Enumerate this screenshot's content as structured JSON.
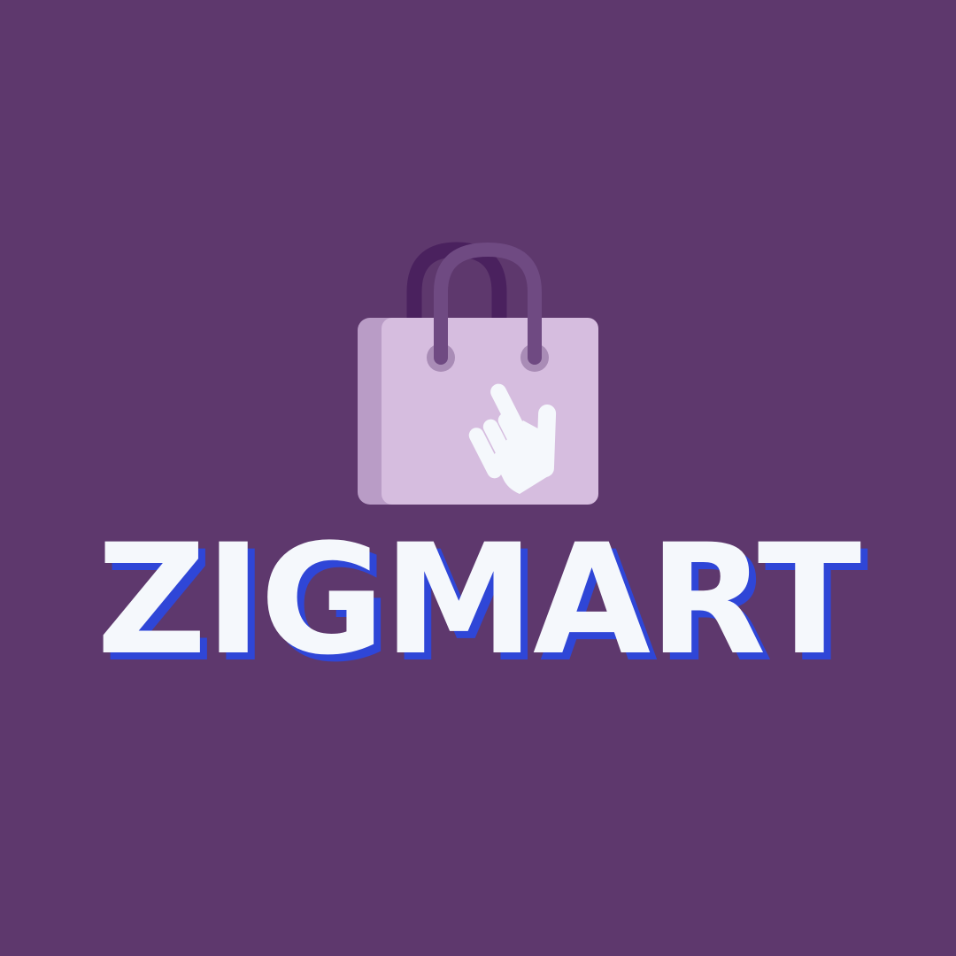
{
  "logo": {
    "brand_name": "ZIGMART",
    "icon": "shopping-bag-pointer-icon",
    "colors": {
      "background": "#5e386d",
      "bag_front": "#d6bddf",
      "bag_side": "#b99cc6",
      "handle_back": "#4a215e",
      "handle_front": "#6f4a82",
      "hand": "#f5f8fc",
      "text": "#f5f8fc",
      "text_shadow": "#2f46d7"
    }
  }
}
